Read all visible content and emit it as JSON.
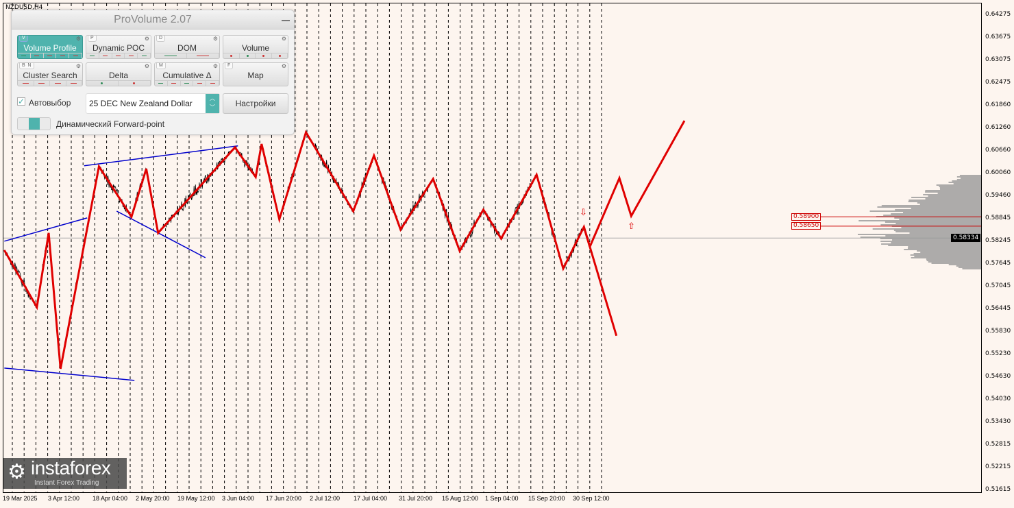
{
  "symbol": "NZDUSD,H4",
  "panel": {
    "title": "ProVolume 2.07",
    "buttons": [
      {
        "label": "Volume Profile",
        "key": "V",
        "active": true,
        "ind": [
          "#2e8b57",
          "#c33",
          "#c33",
          "#c33",
          "#c33"
        ]
      },
      {
        "label": "Dynamic POC",
        "key": "P",
        "ind": [
          "#2e8b57",
          "#c33",
          "#c33",
          "#c33",
          "#2e8b57"
        ]
      },
      {
        "label": "DOM",
        "key": "D",
        "ind": [
          "#2e8b57",
          "#c33"
        ]
      },
      {
        "label": "Volume",
        "key": "",
        "dots": true,
        "ind": [
          "#c33",
          "#2e8b57",
          "#c33",
          "#c33"
        ]
      },
      {
        "label": "Cluster Search",
        "key": "B  N",
        "ind": [
          "#c33",
          "#c33",
          "#c33",
          "#c33"
        ]
      },
      {
        "label": "Delta",
        "key": "",
        "dots": true,
        "ind": [
          "#2e8b57",
          "#c33"
        ]
      },
      {
        "label": "Cumulative Δ",
        "key": "M",
        "ind": [
          "#2e8b57",
          "#c33",
          "#2e8b57",
          "#c33",
          "#c33"
        ]
      },
      {
        "label": "Map",
        "key": "F",
        "ind": []
      }
    ],
    "autoselect_label": "Автовыбор",
    "autoselect_checked": true,
    "contract": "25 DEC New Zealand Dollar",
    "settings_label": "Настройки",
    "forward_label": "Динамический Forward-point"
  },
  "chart_data": {
    "type": "line",
    "ylim": [
      0.51615,
      0.64275
    ],
    "y_ticks": [
      "0.64275",
      "0.63675",
      "0.63075",
      "0.62475",
      "0.61860",
      "0.61260",
      "0.60660",
      "0.60060",
      "0.59460",
      "0.58845",
      "0.58245",
      "0.57645",
      "0.57045",
      "0.56445",
      "0.55830",
      "0.55230",
      "0.54630",
      "0.54030",
      "0.53430",
      "0.52815",
      "0.52215",
      "0.51615"
    ],
    "x_ticks": [
      "19 Mar 2025",
      "3 Apr 12:00",
      "18 Apr 04:00",
      "2 May 20:00",
      "19 May 12:00",
      "3 Jun 04:00",
      "17 Jun 20:00",
      "2 Jul 12:00",
      "17 Jul 04:00",
      "31 Jul 20:00",
      "15 Aug 12:00",
      "1 Sep 04:00",
      "15 Sep 20:00",
      "30 Sep 12:00"
    ],
    "current_price": "0.58334",
    "levels": [
      "0.58900",
      "0.58650"
    ],
    "colors": {
      "zigzag": "#e00000",
      "trend": "#0000cc",
      "price": "#000000",
      "profile": "#999999"
    },
    "zigzag": [
      [
        "2025-03-16",
        0.5801
      ],
      [
        "2025-03-27",
        0.5649
      ],
      [
        "2025-03-31",
        0.5847
      ],
      [
        "2025-04-04",
        0.5485
      ],
      [
        "2025-04-17",
        0.6024
      ],
      [
        "2025-04-28",
        0.589
      ],
      [
        "2025-05-03",
        0.6018
      ],
      [
        "2025-05-07",
        0.5847
      ],
      [
        "2025-06-02",
        0.6075
      ],
      [
        "2025-06-09",
        0.5996
      ],
      [
        "2025-06-11",
        0.6084
      ],
      [
        "2025-06-17",
        0.5883
      ],
      [
        "2025-06-26",
        0.6115
      ],
      [
        "2025-07-12",
        0.5905
      ],
      [
        "2025-07-19",
        0.6053
      ],
      [
        "2025-07-28",
        0.5856
      ],
      [
        "2025-08-08",
        0.5991
      ],
      [
        "2025-08-17",
        0.5799
      ],
      [
        "2025-08-25",
        0.5909
      ],
      [
        "2025-08-31",
        0.5832
      ],
      [
        "2025-09-12",
        0.6002
      ],
      [
        "2025-09-21",
        0.5752
      ],
      [
        "2025-09-28",
        0.5863
      ],
      [
        "2025-09-30",
        0.581
      ]
    ],
    "forecast_up": [
      [
        "2025-09-30",
        0.581
      ],
      [
        "2025-10-10",
        0.5993
      ],
      [
        "2025-10-14",
        0.5892
      ],
      [
        "2025-11-01",
        0.6146
      ]
    ],
    "forecast_down": [
      [
        "2025-09-28",
        0.5863
      ],
      [
        "2025-10-09",
        0.5573
      ]
    ],
    "trendlines": [
      [
        [
          "2025-03-16",
          0.5825
        ],
        [
          "2025-04-13",
          0.5887
        ]
      ],
      [
        [
          "2025-04-12",
          0.6026
        ],
        [
          "2025-06-03",
          0.6079
        ]
      ],
      [
        [
          "2025-04-23",
          0.5905
        ],
        [
          "2025-05-23",
          0.5781
        ]
      ],
      [
        [
          "2025-03-16",
          0.5487
        ],
        [
          "2025-04-29",
          0.5454
        ]
      ]
    ],
    "signals": [
      {
        "type": "sell-arrow",
        "date": "2025-09-28"
      },
      {
        "type": "buy-arrow",
        "date": "2025-10-14"
      }
    ]
  },
  "logo": {
    "name": "instaforex",
    "tagline": "Instant Forex Trading"
  }
}
